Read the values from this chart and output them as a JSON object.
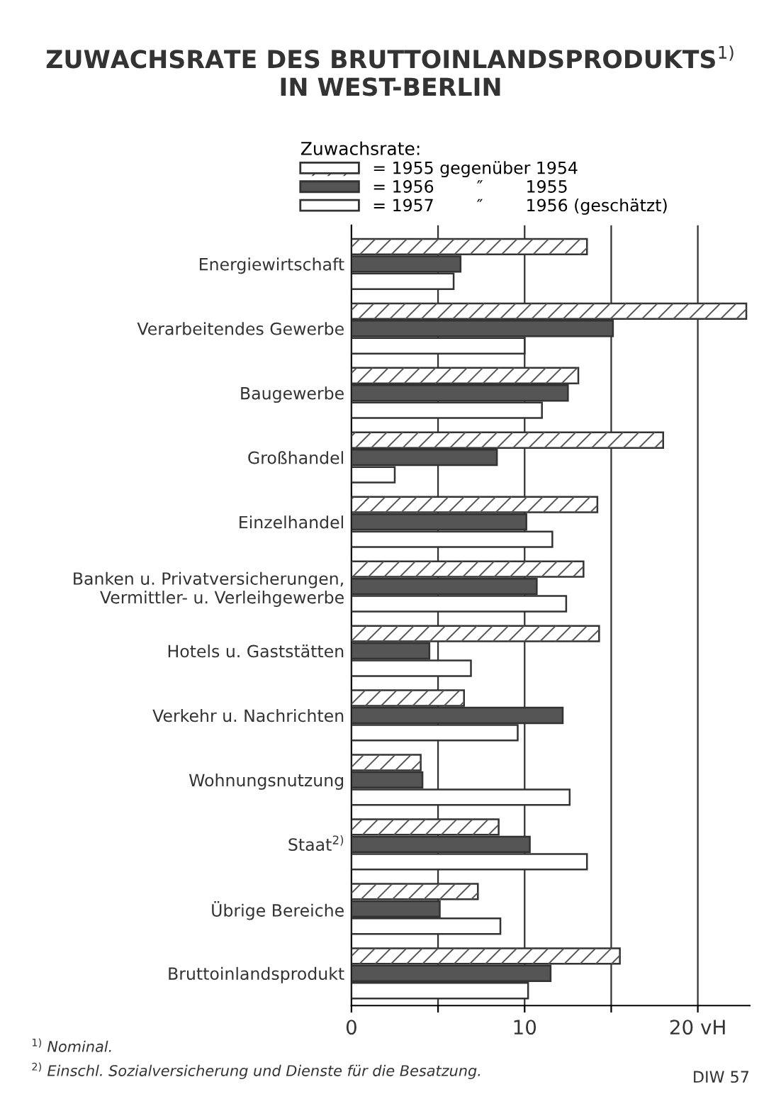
{
  "chart_data": {
    "type": "bar",
    "orientation": "horizontal",
    "title": "ZUWACHSRATE DES BRUTTOINLANDSPRODUKTS$^{1)}$\nIN WEST-BERLIN",
    "legend_title": "Zuwachsrate:",
    "categories": [
      "Energiewirtschaft",
      "Verarbeitendes Gewerbe",
      "Baugewerbe",
      "Großhandel",
      "Einzelhandel",
      "Banken u. Privatversicherungen,\nVermittler- u. Verleihgewerbe",
      "Hotels u. Gaststätten",
      "Verkehr u. Nachrichten",
      "Wohnungsnutzung",
      "Staat$^{2)}$",
      "Übrige Bereiche",
      "Bruttoinlandsprodukt"
    ],
    "series": [
      {
        "name": "= 1955 gegenüber 1954",
        "color": "#ffffff",
        "values": [
          13.6,
          22.8,
          13.1,
          18.0,
          14.2,
          13.4,
          14.3,
          6.5,
          4.0,
          8.5,
          7.3,
          15.5
        ]
      },
      {
        "name": "= 1956        ″        1955",
        "color": "#555555",
        "values": [
          6.3,
          15.1,
          12.5,
          8.4,
          10.1,
          10.7,
          4.5,
          12.2,
          4.1,
          10.3,
          5.1,
          11.5
        ]
      },
      {
        "name": "= 1957        ″        1956 (geschätzt)",
        "color": "#ffffff",
        "values": [
          5.9,
          10.0,
          11.0,
          2.5,
          11.6,
          12.4,
          6.9,
          9.6,
          12.6,
          13.6,
          8.6,
          10.2
        ]
      }
    ],
    "xlim": [
      0,
      23
    ],
    "xticks": [
      0,
      {
        "value": 5,
        "label": null
      },
      10,
      {
        "value": 15,
        "label": null
      },
      {
        "value": 20,
        "label": "20 vH"
      }
    ],
    "grid": "x",
    "legend": "top",
    "annotations": [
      "$^{1)}$ Nominal.",
      "$^{2)}$ Einschl. Sozialversicherung und Dienste für die Besatzung.",
      "DIW 57"
    ]
  }
}
